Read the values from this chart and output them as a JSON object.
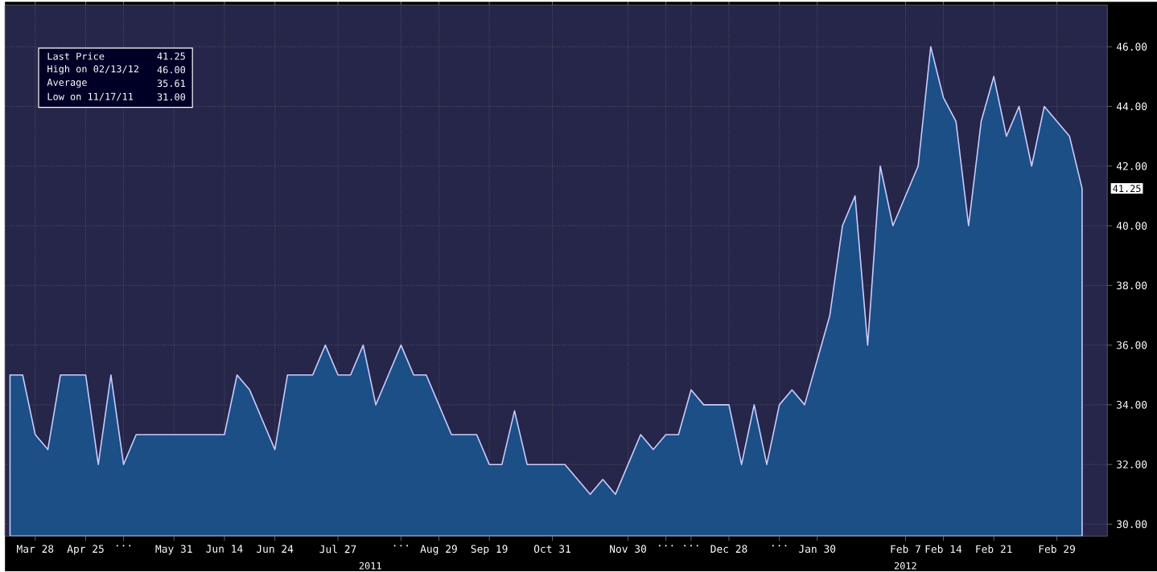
{
  "chart_data": {
    "type": "area",
    "categories": [
      null,
      null,
      "Mar 28",
      null,
      null,
      null,
      "Apr 25",
      null,
      null,
      "...",
      null,
      null,
      null,
      "May 31",
      null,
      null,
      null,
      "Jun 14",
      null,
      null,
      null,
      "Jun 24",
      null,
      null,
      null,
      null,
      "Jul 27",
      null,
      null,
      null,
      null,
      "...",
      null,
      null,
      "Aug 29",
      null,
      null,
      null,
      "Sep 19",
      null,
      null,
      null,
      null,
      "Oct 31",
      null,
      null,
      null,
      null,
      null,
      "Nov 30",
      null,
      null,
      "...",
      null,
      "...",
      null,
      null,
      "Dec 28",
      null,
      null,
      null,
      "...",
      null,
      null,
      "Jan 30",
      null,
      null,
      null,
      null,
      null,
      null,
      "Feb 7",
      null,
      null,
      "Feb 14",
      null,
      null,
      null,
      "Feb 21",
      null,
      null,
      null,
      null,
      "Feb 29",
      null,
      null
    ],
    "series": [
      {
        "color": "#1b4f86",
        "values": [
          35,
          35,
          33,
          32.5,
          35,
          35,
          35,
          32,
          35,
          32,
          33,
          33,
          33,
          33,
          33,
          33,
          33,
          33,
          35,
          34.5,
          33.5,
          32.5,
          35,
          35,
          35,
          36,
          35,
          35,
          36,
          34,
          35,
          36,
          35,
          35,
          34,
          33,
          33,
          33,
          32,
          32,
          33.8,
          32,
          32,
          32,
          32,
          31.5,
          31,
          31.5,
          31,
          32,
          33,
          32.5,
          33,
          33,
          34.5,
          34,
          34,
          34,
          32,
          34,
          32,
          34,
          34.5,
          34,
          35.5,
          37,
          40,
          41,
          36,
          42,
          40,
          41,
          42,
          46,
          44.3,
          43.5,
          40,
          43.5,
          45,
          43,
          44,
          42,
          44,
          43.5,
          43,
          41.25
        ]
      }
    ],
    "ylim": [
      29.6,
      47.4
    ],
    "yticks": [
      {
        "value": 30,
        "label": "30.00"
      },
      {
        "value": 32,
        "label": "32.00"
      },
      {
        "value": 34,
        "label": "34.00"
      },
      {
        "value": 36,
        "label": "36.00"
      },
      {
        "value": 38,
        "label": "38.00"
      },
      {
        "value": 40,
        "label": "40.00"
      },
      {
        "value": 42,
        "label": "42.00"
      },
      {
        "value": 44,
        "label": "44.00"
      },
      {
        "value": 46,
        "label": "46.00"
      }
    ],
    "grid": true,
    "annotations": [
      "Last Price",
      "41.25",
      "High on 02/13/12",
      "46.00",
      "Average",
      "35.61",
      "Low on 11/17/11",
      "31.00",
      "2011",
      "2012",
      "41.25"
    ]
  }
}
